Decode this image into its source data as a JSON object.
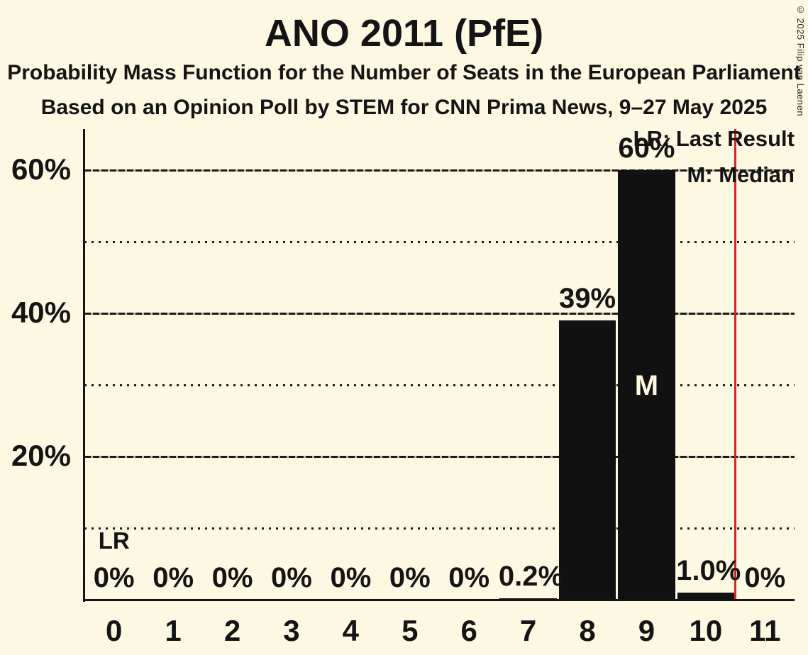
{
  "title": "ANO 2011 (PfE)",
  "subtitle1": "Probability Mass Function for the Number of Seats in the European Parliament",
  "subtitle2": "Based on an Opinion Poll by STEM for CNN Prima News, 9–27 May 2025",
  "copyright": "© 2025 Filip van Laenen",
  "legend": {
    "last_result": "LR: Last Result",
    "median": "M: Median"
  },
  "colors": {
    "background": "#FCF8E1",
    "ink": "#141414",
    "bar": "#111111",
    "last_result_line": "#EC1B23",
    "median_marker_text": "#FCF8E1"
  },
  "chart_data": {
    "type": "bar",
    "title": "ANO 2011 (PfE)",
    "categories": [
      "0",
      "1",
      "2",
      "3",
      "4",
      "5",
      "6",
      "7",
      "8",
      "9",
      "10",
      "11"
    ],
    "values": [
      0,
      0,
      0,
      0,
      0,
      0,
      0,
      0.2,
      39,
      60,
      1.0,
      0
    ],
    "bar_labels": [
      "0%",
      "0%",
      "0%",
      "0%",
      "0%",
      "0%",
      "0%",
      "0.2%",
      "39%",
      "60%",
      "1.0%",
      "0%"
    ],
    "xlabel": "",
    "ylabel": "",
    "ylim": [
      0,
      66
    ],
    "y_ticks": [
      {
        "pct": 20,
        "label": "20%"
      },
      {
        "pct": 40,
        "label": "40%"
      },
      {
        "pct": 60,
        "label": "60%"
      }
    ],
    "solid_gridlines_pct": [
      20,
      40,
      60
    ],
    "dotted_gridlines_pct": [
      10,
      30,
      50
    ],
    "grid": true,
    "legend_position": "top-right",
    "median_category": "9",
    "median_marker": "M",
    "last_result_marker": "LR",
    "lr_marker_category": "0",
    "last_result_line_position": 10.5
  }
}
